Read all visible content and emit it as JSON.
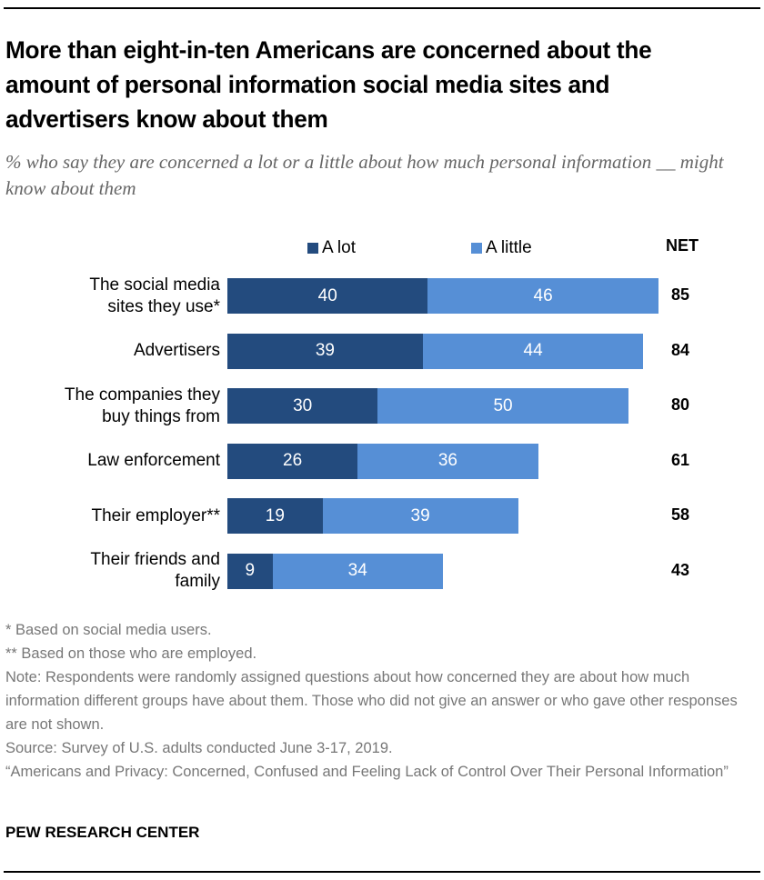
{
  "chart_data": {
    "type": "bar",
    "orientation": "horizontal",
    "stacked": true,
    "title": "More than eight-in-ten Americans are concerned about the amount of personal information social media sites and advertisers know about them",
    "subtitle": "% who say they are concerned a lot or a little about how much personal information __ might know about them",
    "categories": [
      "The social media sites they use*",
      "Advertisers",
      "The companies they buy things from",
      "Law enforcement",
      "Their employer**",
      "Their friends and family"
    ],
    "category_lines": [
      [
        "The social media",
        "sites they use*"
      ],
      [
        "Advertisers"
      ],
      [
        "The companies they",
        "buy things from"
      ],
      [
        "Law enforcement"
      ],
      [
        "Their employer**"
      ],
      [
        "Their friends and",
        "family"
      ]
    ],
    "series": [
      {
        "name": "A lot",
        "color": "#234B7E",
        "values": [
          40,
          39,
          30,
          26,
          19,
          9
        ]
      },
      {
        "name": "A little",
        "color": "#568FD6",
        "values": [
          46,
          44,
          50,
          36,
          39,
          34
        ]
      }
    ],
    "net_label": "NET",
    "net": [
      85,
      84,
      80,
      61,
      58,
      43
    ],
    "xlim": [
      0,
      100
    ],
    "legend_position": "top",
    "grid": false
  },
  "notes": [
    "* Based on social media users.",
    "** Based on those who are employed.",
    "Note: Respondents were randomly assigned questions about how concerned they are about how much information different groups have about them. Those who did not give an answer or who gave other responses are not shown.",
    "Source: Survey of U.S. adults conducted June 3-17, 2019.",
    "“Americans and Privacy: Concerned, Confused and Feeling Lack of Control Over Their Personal Information”"
  ],
  "brand": "PEW RESEARCH CENTER"
}
